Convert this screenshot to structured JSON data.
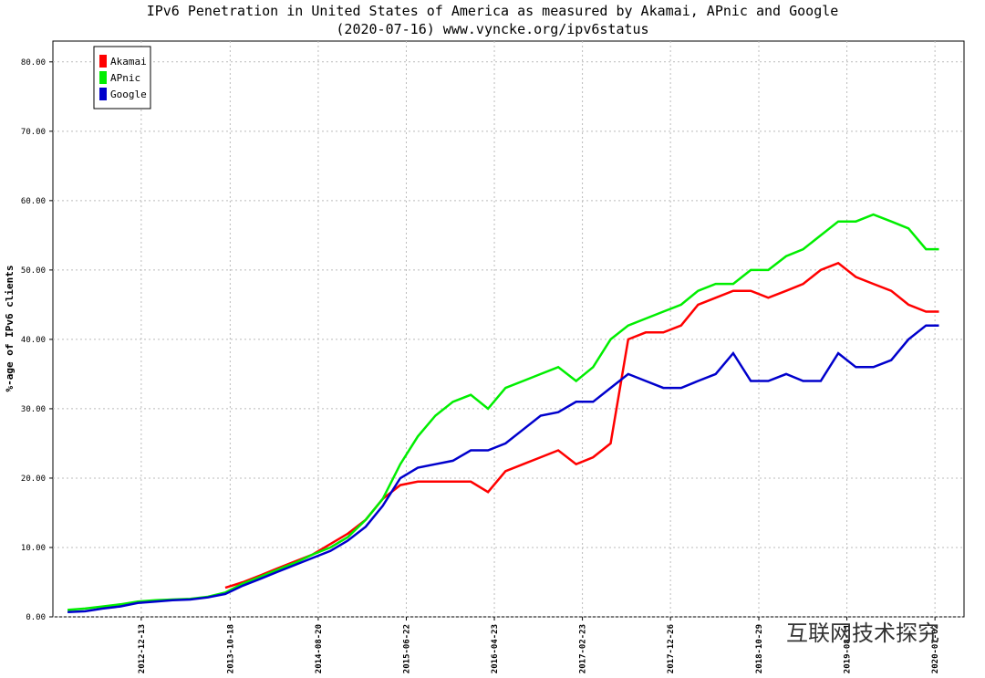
{
  "chart_data": {
    "type": "line",
    "title": "IPv6 Penetration in United States of America as measured by Akamai, APnic and Google",
    "subtitle": "(2020-07-16) www.vyncke.org/ipv6status",
    "y_label": "%-age of IPv6 clients",
    "watermark": "互联网技术探究",
    "x": [
      "2012-04-01",
      "2012-06-01",
      "2012-08-01",
      "2012-10-01",
      "2012-12-01",
      "2013-02-01",
      "2013-04-01",
      "2013-06-01",
      "2013-08-01",
      "2013-10-01",
      "2013-12-01",
      "2014-02-01",
      "2014-04-01",
      "2014-06-01",
      "2014-08-01",
      "2014-10-01",
      "2014-12-01",
      "2015-02-01",
      "2015-04-01",
      "2015-06-01",
      "2015-08-01",
      "2015-10-01",
      "2015-12-01",
      "2016-02-01",
      "2016-04-01",
      "2016-06-01",
      "2016-08-01",
      "2016-10-01",
      "2016-12-01",
      "2017-02-01",
      "2017-04-01",
      "2017-06-01",
      "2017-08-01",
      "2017-10-01",
      "2017-12-01",
      "2018-02-01",
      "2018-04-01",
      "2018-06-01",
      "2018-08-01",
      "2018-10-01",
      "2018-12-01",
      "2019-02-01",
      "2019-04-01",
      "2019-06-01",
      "2019-08-01",
      "2019-10-01",
      "2019-12-01",
      "2020-02-01",
      "2020-04-01",
      "2020-06-01",
      "2020-07-16"
    ],
    "series": [
      {
        "name": "Akamai",
        "color": "#ff0000",
        "values": [
          null,
          null,
          null,
          null,
          null,
          null,
          null,
          null,
          null,
          4.2,
          5,
          6,
          7,
          8,
          9,
          10.5,
          12,
          14,
          17,
          19,
          19.5,
          19.5,
          19.5,
          19.5,
          18,
          21,
          22,
          23,
          24,
          22,
          23,
          25,
          40,
          41,
          41,
          42,
          45,
          46,
          47,
          47,
          46,
          47,
          48,
          50,
          51,
          49,
          48,
          47,
          45,
          44,
          44
        ]
      },
      {
        "name": "APnic",
        "color": "#00ee00",
        "values": [
          1.0,
          1.2,
          1.5,
          1.8,
          2.2,
          2.4,
          2.5,
          2.6,
          2.9,
          3.5,
          4.8,
          5.8,
          6.8,
          7.8,
          9.0,
          10,
          11.5,
          14,
          17,
          22,
          26,
          29,
          31,
          32,
          30,
          33,
          34,
          35,
          36,
          34,
          36,
          40,
          42,
          43,
          44,
          45,
          47,
          48,
          48,
          50,
          50,
          52,
          53,
          55,
          57,
          57,
          58,
          57,
          56,
          53,
          53
        ]
      },
      {
        "name": "Google",
        "color": "#0000cc",
        "values": [
          0.7,
          0.8,
          1.2,
          1.5,
          2.0,
          2.2,
          2.4,
          2.5,
          2.8,
          3.3,
          4.5,
          5.5,
          6.5,
          7.5,
          8.5,
          9.5,
          11,
          13,
          16,
          20,
          21.5,
          22,
          22.5,
          24,
          24,
          25,
          27,
          29,
          29.5,
          31,
          31,
          33,
          35,
          34,
          33,
          33,
          34,
          35,
          38,
          34,
          34,
          35,
          34,
          34,
          38,
          36,
          36,
          37,
          40,
          42,
          42
        ]
      }
    ],
    "xlim": [
      "2012-02-10",
      "2020-10-11"
    ],
    "xticks": [
      "2012-12-13",
      "2013-10-18",
      "2014-08-20",
      "2015-06-22",
      "2016-04-23",
      "2017-02-23",
      "2017-12-26",
      "2018-10-29",
      "2019-08-31",
      "2020-07-02"
    ],
    "ylim": [
      0,
      83
    ],
    "yticks": [
      {
        "value": 0,
        "label": "0.00"
      },
      {
        "value": 10,
        "label": "10.00"
      },
      {
        "value": 20,
        "label": "20.00"
      },
      {
        "value": 30,
        "label": "30.00"
      },
      {
        "value": 40,
        "label": "40.00"
      },
      {
        "value": 50,
        "label": "50.00"
      },
      {
        "value": 60,
        "label": "60.00"
      },
      {
        "value": 70,
        "label": "70.00"
      },
      {
        "value": 80,
        "label": "80.00"
      }
    ],
    "grid": true,
    "legend": "upper-left"
  }
}
